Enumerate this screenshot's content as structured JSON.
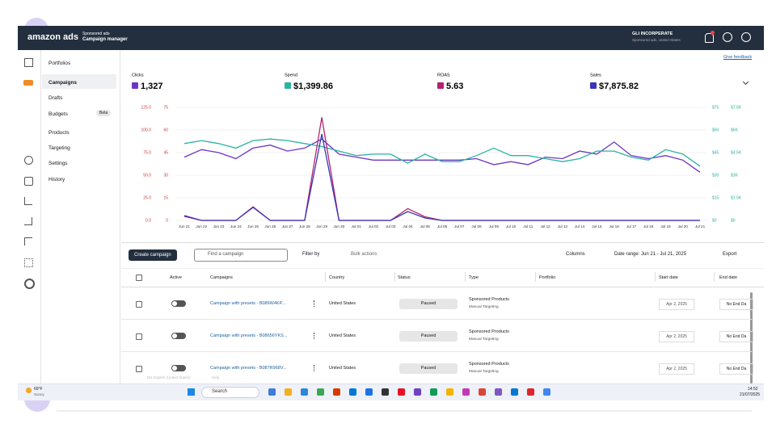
{
  "topbar": {
    "logo": "amazon ads",
    "product": "Sponsored ads",
    "app": "Campaign manager",
    "account": "GLI INCORPERATE",
    "account_sub": "Sponsored ads, United States"
  },
  "nav": {
    "items": [
      "Portfolios",
      "Campaigns",
      "Drafts",
      "Budgets",
      "Products",
      "Targeting",
      "Settings",
      "History"
    ],
    "badge": "Beta"
  },
  "feedback": "Give feedback",
  "chart": {
    "type": "line",
    "x": [
      "Jun 21",
      "Jun 22",
      "Jun 23",
      "Jun 24",
      "Jun 25",
      "Jun 26",
      "Jun 27",
      "Jun 28",
      "Jun 29",
      "Jun 30",
      "Jul 01",
      "Jul 02",
      "Jul 03",
      "Jul 04",
      "Jul 05",
      "Jul 06",
      "Jul 07",
      "Jul 08",
      "Jul 09",
      "Jul 10",
      "Jul 11",
      "Jul 12",
      "Jul 13",
      "Jul 14",
      "Jul 15",
      "Jul 16",
      "Jul 17",
      "Jul 18",
      "Jul 19",
      "Jul 20",
      "Jul 21"
    ],
    "axes": [
      {
        "lim": [
          0,
          125
        ],
        "ticks": [
          {
            "value": 125,
            "label": "125.0"
          },
          {
            "value": 100,
            "label": "100.0"
          },
          {
            "value": 75,
            "label": "75.0"
          },
          {
            "value": 50,
            "label": "50.0"
          },
          {
            "value": 25,
            "label": "25.0"
          },
          {
            "value": 0,
            "label": "0.0"
          }
        ]
      },
      {
        "lim": [
          0,
          75
        ],
        "ticks": [
          75,
          60,
          45,
          30,
          15,
          0
        ]
      },
      {
        "lim": [
          0,
          75
        ],
        "ticks": [
          {
            "value": 75,
            "label": "$75"
          },
          {
            "value": 60,
            "label": "$60"
          },
          {
            "value": 45,
            "label": "$45"
          },
          {
            "value": 30,
            "label": "$30"
          },
          {
            "value": 15,
            "label": "$15"
          },
          {
            "value": 0,
            "label": "$0"
          }
        ]
      },
      {
        "lim": [
          0,
          7500
        ],
        "ticks": [
          {
            "value": 7500,
            "label": "$7.5K"
          },
          {
            "value": 6000,
            "label": "$6K"
          },
          {
            "value": 4500,
            "label": "$4.5K"
          },
          {
            "value": 3000,
            "label": "$3K"
          },
          {
            "value": 1500,
            "label": "$1.5K"
          },
          {
            "value": 0,
            "label": "$0"
          }
        ]
      }
    ],
    "grid": true,
    "series": [
      {
        "name": "Clicks",
        "total": "1,327",
        "color": "#6e35c2",
        "axis": 1,
        "values": [
          42,
          47,
          45,
          41,
          48,
          50,
          46,
          48,
          54,
          44,
          42,
          40,
          40,
          40,
          40,
          40,
          40,
          41,
          37,
          39,
          37,
          42,
          41,
          46,
          44,
          52,
          43,
          41,
          43,
          40,
          32
        ]
      },
      {
        "name": "Spend",
        "total": "$1,399.86",
        "color": "#2bb3a3",
        "axis": 2,
        "values": [
          51,
          53,
          51,
          48,
          53,
          54,
          53,
          51,
          49,
          46,
          43,
          44,
          44,
          38,
          44,
          39,
          39,
          43,
          48,
          43,
          43,
          41,
          39,
          41,
          46,
          46,
          42,
          40,
          47,
          44,
          36
        ]
      },
      {
        "name": "ROAS",
        "total": "5.63",
        "color": "#b3226e",
        "axis": 0,
        "values": [
          4.5,
          0,
          0,
          0,
          15,
          0,
          0,
          0,
          114,
          0,
          0,
          0,
          0,
          13,
          4,
          0,
          0,
          0,
          0,
          0,
          0,
          0,
          0,
          0,
          0,
          0,
          0,
          0,
          0,
          0,
          0
        ]
      },
      {
        "name": "Sales",
        "total": "$7,875.82",
        "color": "#3a36b8",
        "axis": 3,
        "values": [
          320,
          0,
          0,
          0,
          860,
          0,
          0,
          0,
          5730,
          0,
          0,
          0,
          0,
          590,
          160,
          0,
          0,
          0,
          0,
          0,
          0,
          0,
          0,
          0,
          0,
          0,
          0,
          0,
          0,
          0,
          0
        ]
      }
    ]
  },
  "toolbar": {
    "create": "Create campaign",
    "search": "Find a campaign",
    "filter": "Filter by",
    "bulk": "Bulk actions",
    "columns": "Columns",
    "date_range": "Date range: Jun 21 - Jul 21, 2025",
    "export": "Export"
  },
  "table": {
    "headers": [
      "Active",
      "Campaigns",
      "Country",
      "Status",
      "Type",
      "Portfolio",
      "Start date",
      "End date"
    ],
    "rows": [
      [
        "Campaign with presets - B086W4KP...",
        "United States",
        "Paused",
        "Sponsored Products",
        "Manual Targeting",
        "Apr 2, 2025",
        "No End Da"
      ],
      [
        "Campaign with presets - B08656YKS...",
        "United States",
        "Paused",
        "Sponsored Products",
        "Manual Targeting",
        "Apr 2, 2025",
        "No End Da"
      ],
      [
        "Campaign with presets - B087R968V...",
        "United States",
        "Paused",
        "Sponsored Products",
        "Manual Targeting",
        "Apr 2, 2025",
        "No End Da"
      ]
    ]
  },
  "footer": {
    "language": "EN English (United States)",
    "help": "Help"
  },
  "taskbar": {
    "temp": "69°F",
    "weather": "Sunny",
    "search": "Search",
    "time": "14:52",
    "date": "21/07/2025"
  }
}
